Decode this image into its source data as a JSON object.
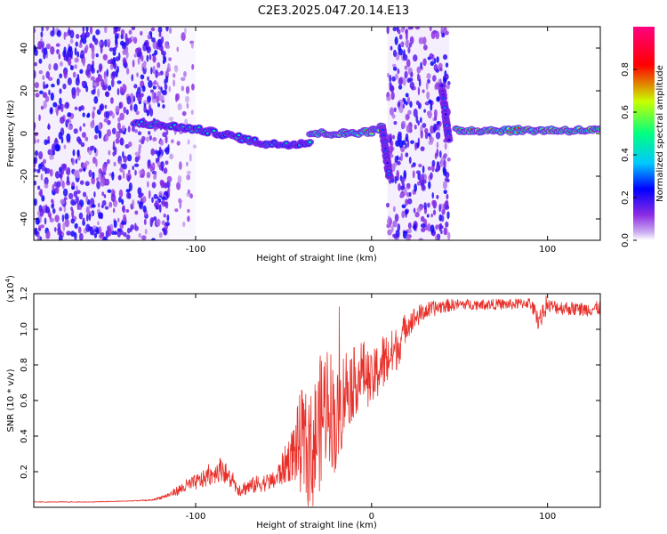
{
  "title": "C2E3.2025.047.20.14.E13",
  "chart_data": [
    {
      "type": "heatmap",
      "xlabel": "Height of straight line (km)",
      "ylabel": "Frequency (Hz)",
      "xlim": [
        -192,
        130
      ],
      "ylim": [
        -50,
        50
      ],
      "x_ticks": [
        -100,
        0,
        100
      ],
      "y_ticks": [
        -40,
        -20,
        0,
        20,
        40
      ],
      "x_tick_labels": [
        "-100",
        "0",
        "100"
      ],
      "y_tick_labels": [
        "-40",
        "-20",
        "0",
        "20",
        "40"
      ],
      "colorbar": {
        "label": "Normalized spectral amplitude",
        "range": [
          0,
          1
        ],
        "ticks": [
          0.0,
          0.2,
          0.4,
          0.6,
          0.8
        ],
        "tick_labels": [
          "0.0",
          "0.2",
          "0.4",
          "0.6",
          "0.8"
        ],
        "colors": [
          "#ffffff",
          "#c9a8f0",
          "#8a2be2",
          "#0000ff",
          "#00c8ff",
          "#00ff80",
          "#c8ff00",
          "#ff0000",
          "#ff0080"
        ]
      },
      "noise_regions": [
        {
          "x_range": [
            -192,
            -115
          ],
          "y_range": [
            -50,
            50
          ],
          "density": "dense",
          "amplitude": 0.2
        },
        {
          "x_range": [
            -115,
            -100
          ],
          "y_range": [
            -50,
            50
          ],
          "density": "sparse",
          "amplitude": 0.1
        },
        {
          "x_range": [
            9,
            44
          ],
          "y_range": [
            -50,
            50
          ],
          "density": "dense",
          "amplitude": 0.2
        }
      ],
      "track_segments": [
        {
          "x": [
            -135,
            -120,
            -100,
            -80,
            -60,
            -45,
            -35
          ],
          "y": [
            5,
            4,
            2,
            -1,
            -5,
            -5,
            -4
          ],
          "amplitude": 0.45
        },
        {
          "x": [
            -35,
            -15,
            0,
            6
          ],
          "y": [
            0,
            0,
            1,
            3
          ],
          "amplitude": 0.75
        },
        {
          "x": [
            6,
            10
          ],
          "y": [
            3,
            -20
          ],
          "amplitude": 0.3
        },
        {
          "x": [
            40,
            44
          ],
          "y": [
            22,
            -4
          ],
          "amplitude": 0.3
        },
        {
          "x": [
            48,
            130
          ],
          "y": [
            1.5,
            1.5
          ],
          "amplitude": 0.85
        }
      ]
    },
    {
      "type": "line",
      "xlabel": "Height of straight line (km)",
      "ylabel": "SNR (10 * v/v)",
      "y_multiplier": "(x10",
      "y_multiplier_exp": "4",
      "xlim": [
        -192,
        130
      ],
      "ylim": [
        0,
        12000
      ],
      "x_ticks": [
        -100,
        0,
        100
      ],
      "y_ticks": [
        2000,
        4000,
        6000,
        8000,
        10000,
        12000
      ],
      "x_tick_labels": [
        "-100",
        "0",
        "100"
      ],
      "y_tick_labels": [
        "0.2",
        "0.4",
        "0.6",
        "0.8",
        "1.0",
        "1.2"
      ],
      "color": "#e8302a",
      "series": [
        {
          "x": [
            -192,
            -160,
            -140,
            -125,
            -115,
            -105,
            -95,
            -85,
            -80,
            -75,
            -65,
            -55,
            -45,
            -40,
            -35,
            -30,
            -25,
            -20,
            -15,
            -10,
            -5,
            0,
            5,
            10,
            15,
            20,
            30,
            40,
            50,
            60,
            70,
            80,
            90,
            95,
            100,
            110,
            120,
            130
          ],
          "values": [
            300,
            300,
            350,
            400,
            700,
            1200,
            1600,
            2200,
            1500,
            1000,
            1300,
            1500,
            3000,
            3700,
            2800,
            4500,
            6300,
            4500,
            6700,
            7000,
            7700,
            7000,
            8000,
            8400,
            9000,
            10300,
            11000,
            11300,
            11400,
            11400,
            11400,
            11400,
            11500,
            10500,
            11300,
            11200,
            11100,
            11200
          ],
          "noise_amplitude": [
            20,
            20,
            20,
            40,
            150,
            400,
            500,
            700,
            500,
            400,
            500,
            500,
            1500,
            3000,
            3500,
            3800,
            3500,
            3000,
            2500,
            2000,
            1800,
            1500,
            1800,
            1500,
            1200,
            800,
            500,
            400,
            300,
            300,
            300,
            300,
            300,
            600,
            400,
            400,
            400,
            400
          ]
        }
      ]
    }
  ]
}
